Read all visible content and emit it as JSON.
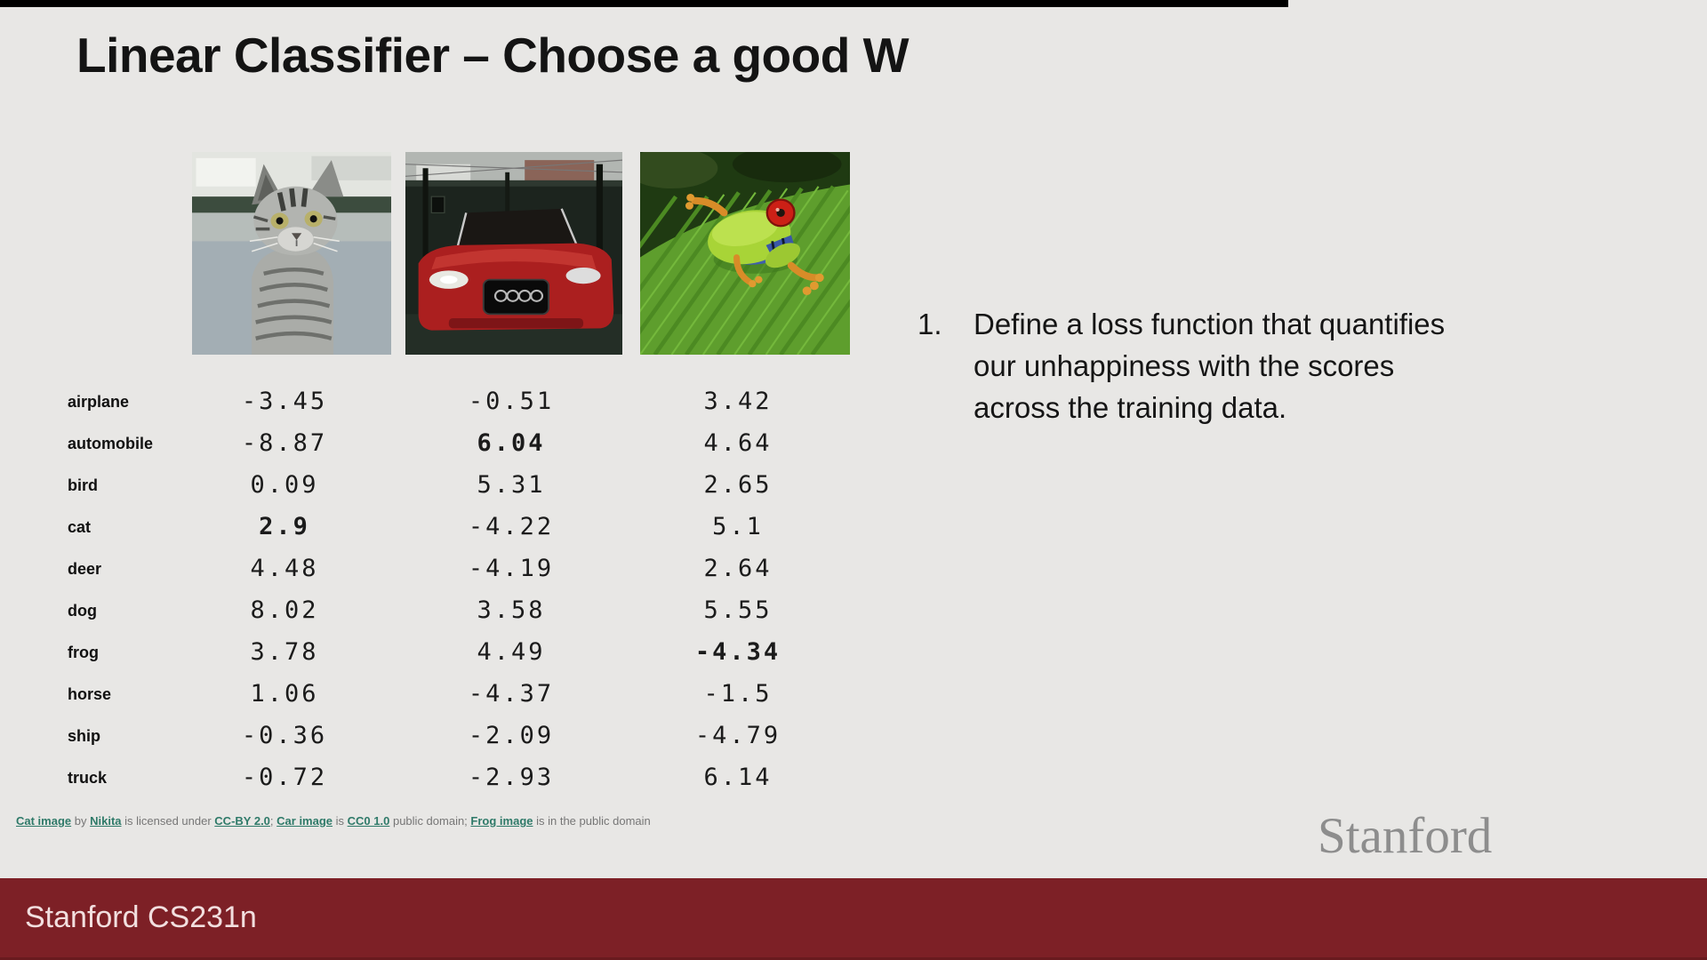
{
  "title": "Linear Classifier – Choose a good W",
  "note": {
    "number": "1.",
    "lines": [
      "Define a loss function that quantifies",
      "our unhappiness with the scores",
      "across the training data."
    ]
  },
  "photos": [
    {
      "name": "cat-photo",
      "depicts": "gray tabby cat"
    },
    {
      "name": "car-photo",
      "depicts": "red car"
    },
    {
      "name": "frog-photo",
      "depicts": "red-eyed tree frog on leaf"
    }
  ],
  "score_table": {
    "classes": [
      "airplane",
      "automobile",
      "bird",
      "cat",
      "deer",
      "dog",
      "frog",
      "horse",
      "ship",
      "truck"
    ],
    "columns": [
      {
        "image": "cat",
        "scores": [
          "-3.45",
          "-8.87",
          "0.09",
          "2.9",
          "4.48",
          "8.02",
          "3.78",
          "1.06",
          "-0.36",
          "-0.72"
        ],
        "bold_index": 3
      },
      {
        "image": "car",
        "scores": [
          "-0.51",
          "6.04",
          "5.31",
          "-4.22",
          "-4.19",
          "3.58",
          "4.49",
          "-4.37",
          "-2.09",
          "-2.93"
        ],
        "bold_index": 1
      },
      {
        "image": "frog",
        "scores": [
          "3.42",
          "4.64",
          "2.65",
          "5.1",
          "2.64",
          "5.55",
          "-4.34",
          "-1.5",
          "-4.79",
          "6.14"
        ],
        "bold_index": 6
      }
    ]
  },
  "attribution": {
    "segments": [
      {
        "text": "Cat image",
        "link": true
      },
      {
        "text": " by ",
        "link": false
      },
      {
        "text": "Nikita",
        "link": true
      },
      {
        "text": " is licensed under ",
        "link": false
      },
      {
        "text": "CC-BY 2.0",
        "link": true
      },
      {
        "text": "; ",
        "link": false
      },
      {
        "text": "Car image",
        "link": true
      },
      {
        "text": " is ",
        "link": false
      },
      {
        "text": "CC0 1.0",
        "link": true
      },
      {
        "text": " public domain; ",
        "link": false
      },
      {
        "text": "Frog image",
        "link": true
      },
      {
        "text": " is in the public domain",
        "link": false
      }
    ]
  },
  "footer": {
    "course": "Stanford CS231n",
    "logo": "Stanford"
  },
  "colors": {
    "background": "#e8e7e5",
    "maroon": "#7d2026",
    "footer_text": "#f2dfdf",
    "link": "#2f7a69",
    "logo_gray": "#8d8d8d"
  }
}
